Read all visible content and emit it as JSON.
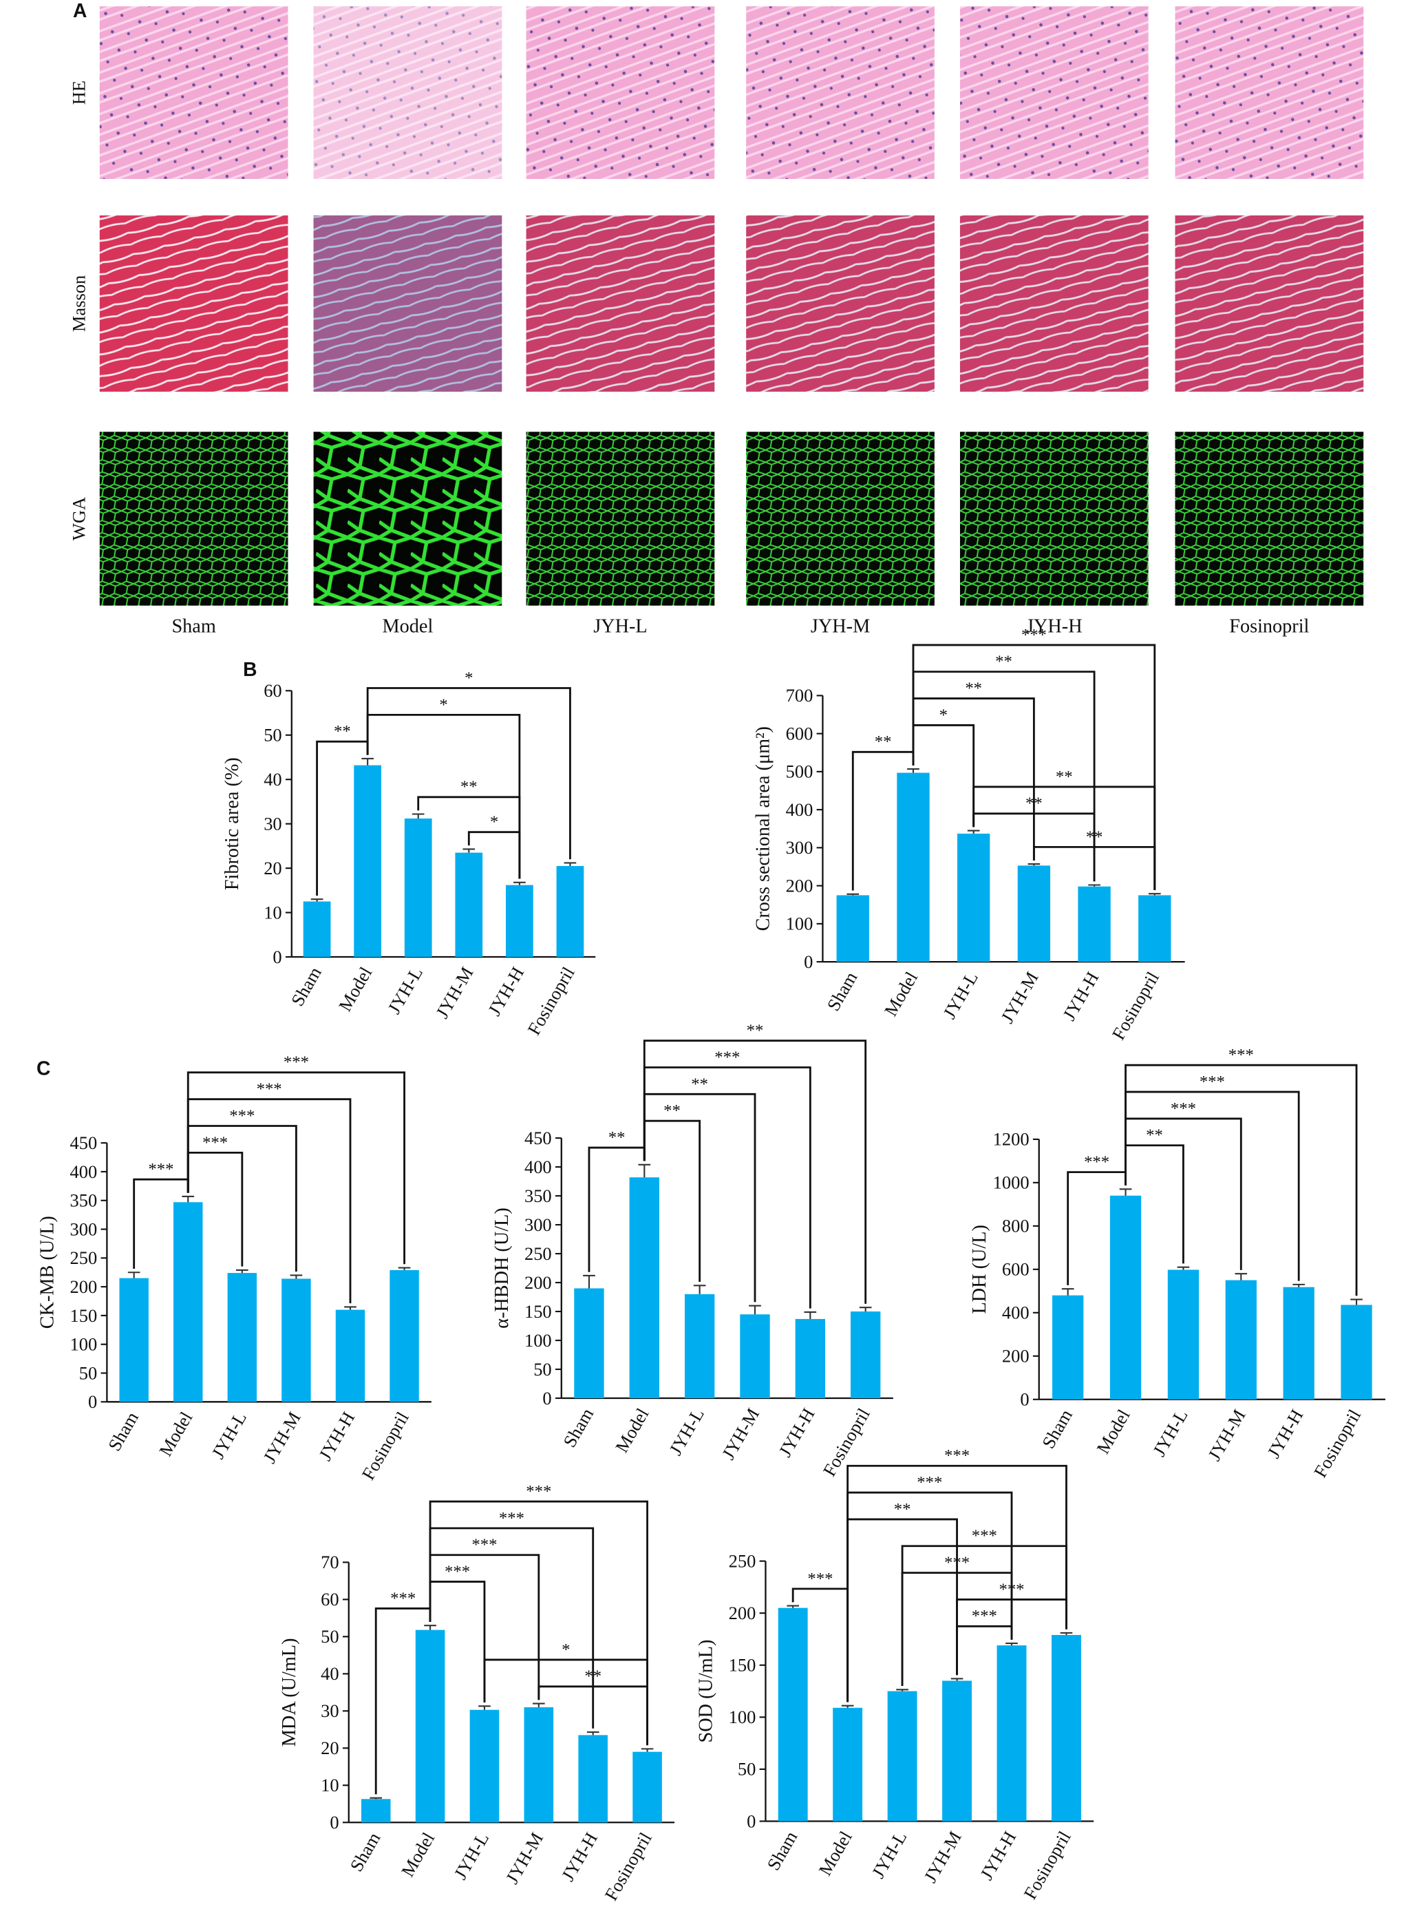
{
  "panel_labels": [
    "A",
    "B",
    "C"
  ],
  "histology": {
    "stains": [
      "HE",
      "Masson",
      "WGA"
    ],
    "groups": [
      "Sham",
      "Model",
      "JYH-L",
      "JYH-M",
      "JYH-H",
      "Fosinopril"
    ]
  },
  "chart_data": [
    {
      "type": "bar",
      "y_label": "Fibrotic area (%)",
      "color": "#00aeef",
      "categories": [
        "Sham",
        "Model",
        "JYH-L",
        "JYH-M",
        "JYH-H",
        "Fosinopril"
      ],
      "values": [
        12.5,
        43.2,
        31.2,
        23.5,
        16.2,
        20.5
      ],
      "errors": [
        0.5,
        1.5,
        1,
        0.8,
        0.6,
        0.7
      ],
      "ylim": [
        0,
        60
      ],
      "yticks": [
        0,
        10,
        20,
        30,
        40,
        50,
        60
      ],
      "annotations": [
        {
          "text": "**",
          "from": "Sham",
          "to": "Model"
        },
        {
          "text": "*",
          "from": "JYH-M",
          "to": "JYH-H"
        },
        {
          "text": "**",
          "from": "JYH-L",
          "to": "JYH-H"
        },
        {
          "text": "*",
          "from": "Model",
          "to": "JYH-H"
        },
        {
          "text": "*",
          "from": "Model",
          "to": "Fosinopril"
        }
      ]
    },
    {
      "type": "bar",
      "y_label": "Cross sectional area (μm²)",
      "color": "#00aeef",
      "categories": [
        "Sham",
        "Model",
        "JYH-L",
        "JYH-M",
        "JYH-H",
        "Fosinopril"
      ],
      "values": [
        175,
        497,
        337,
        253,
        198,
        175
      ],
      "errors": [
        3,
        10,
        8,
        4,
        4,
        4
      ],
      "ylim": [
        0,
        700
      ],
      "yticks": [
        0,
        100,
        200,
        300,
        400,
        500,
        600,
        700
      ],
      "annotations": [
        {
          "text": "**",
          "from": "Sham",
          "to": "Model"
        },
        {
          "text": "**",
          "from": "JYH-M",
          "to": "Fosinopril"
        },
        {
          "text": "**",
          "from": "JYH-L",
          "to": "JYH-H"
        },
        {
          "text": "**",
          "from": "JYH-L",
          "to": "Fosinopril"
        },
        {
          "text": "*",
          "from": "Model",
          "to": "JYH-L"
        },
        {
          "text": "**",
          "from": "Model",
          "to": "JYH-M"
        },
        {
          "text": "**",
          "from": "Model",
          "to": "JYH-H"
        },
        {
          "text": "***",
          "from": "Model",
          "to": "Fosinopril"
        }
      ]
    },
    {
      "type": "bar",
      "y_label": "CK-MB (U/L)",
      "color": "#00aeef",
      "categories": [
        "Sham",
        "Model",
        "JYH-L",
        "JYH-M",
        "JYH-H",
        "Fosinopril"
      ],
      "values": [
        215,
        347,
        224,
        214,
        160,
        229
      ],
      "errors": [
        10,
        10,
        5,
        6,
        5,
        4
      ],
      "ylim": [
        0,
        450
      ],
      "yticks": [
        0,
        50,
        100,
        150,
        200,
        250,
        300,
        350,
        400,
        450
      ],
      "annotations": [
        {
          "text": "***",
          "from": "Sham",
          "to": "Model"
        },
        {
          "text": "***",
          "from": "Model",
          "to": "JYH-L"
        },
        {
          "text": "***",
          "from": "Model",
          "to": "JYH-M"
        },
        {
          "text": "***",
          "from": "Model",
          "to": "JYH-H"
        },
        {
          "text": "***",
          "from": "Model",
          "to": "Fosinopril"
        }
      ]
    },
    {
      "type": "bar",
      "y_label": "α-HBDH (U/L)",
      "color": "#00aeef",
      "categories": [
        "Sham",
        "Model",
        "JYH-L",
        "JYH-M",
        "JYH-H",
        "Fosinopril"
      ],
      "values": [
        190,
        382,
        180,
        145,
        137,
        150
      ],
      "errors": [
        22,
        22,
        15,
        15,
        12,
        7
      ],
      "ylim": [
        0,
        450
      ],
      "yticks": [
        0,
        50,
        100,
        150,
        200,
        250,
        300,
        350,
        400,
        450
      ],
      "annotations": [
        {
          "text": "**",
          "from": "Sham",
          "to": "Model"
        },
        {
          "text": "**",
          "from": "Model",
          "to": "JYH-L"
        },
        {
          "text": "**",
          "from": "Model",
          "to": "JYH-M"
        },
        {
          "text": "***",
          "from": "Model",
          "to": "JYH-H"
        },
        {
          "text": "**",
          "from": "Model",
          "to": "Fosinopril"
        }
      ]
    },
    {
      "type": "bar",
      "y_label": "LDH (U/L)",
      "color": "#00aeef",
      "categories": [
        "Sham",
        "Model",
        "JYH-L",
        "JYH-M",
        "JYH-H",
        "Fosinopril"
      ],
      "values": [
        480,
        940,
        598,
        550,
        518,
        436
      ],
      "errors": [
        30,
        30,
        12,
        30,
        12,
        25
      ],
      "ylim": [
        0,
        1200
      ],
      "yticks": [
        0,
        200,
        400,
        600,
        800,
        1000,
        1200
      ],
      "annotations": [
        {
          "text": "***",
          "from": "Sham",
          "to": "Model"
        },
        {
          "text": "**",
          "from": "Model",
          "to": "JYH-L"
        },
        {
          "text": "***",
          "from": "Model",
          "to": "JYH-M"
        },
        {
          "text": "***",
          "from": "Model",
          "to": "JYH-H"
        },
        {
          "text": "***",
          "from": "Model",
          "to": "Fosinopril"
        }
      ]
    },
    {
      "type": "bar",
      "y_label": "MDA (U/mL)",
      "color": "#00aeef",
      "categories": [
        "Sham",
        "Model",
        "JYH-L",
        "JYH-M",
        "JYH-H",
        "Fosinopril"
      ],
      "values": [
        6.3,
        51.8,
        30.3,
        31,
        23.5,
        19
      ],
      "errors": [
        0.3,
        1.2,
        1,
        1,
        0.8,
        0.8
      ],
      "ylim": [
        0,
        70
      ],
      "yticks": [
        0,
        10,
        20,
        30,
        40,
        50,
        60,
        70
      ],
      "annotations": [
        {
          "text": "***",
          "from": "Sham",
          "to": "Model"
        },
        {
          "text": "**",
          "from": "JYH-M",
          "to": "Fosinopril"
        },
        {
          "text": "*",
          "from": "JYH-L",
          "to": "Fosinopril"
        },
        {
          "text": "***",
          "from": "Model",
          "to": "JYH-L"
        },
        {
          "text": "***",
          "from": "Model",
          "to": "JYH-M"
        },
        {
          "text": "***",
          "from": "Model",
          "to": "JYH-H"
        },
        {
          "text": "***",
          "from": "Model",
          "to": "Fosinopril"
        }
      ]
    },
    {
      "type": "bar",
      "y_label": "SOD (U/mL)",
      "color": "#00aeef",
      "categories": [
        "Sham",
        "Model",
        "JYH-L",
        "JYH-M",
        "JYH-H",
        "Fosinopril"
      ],
      "values": [
        205,
        109,
        125,
        135,
        169,
        179
      ],
      "errors": [
        2,
        2,
        1.5,
        2,
        2,
        2
      ],
      "ylim": [
        0,
        250
      ],
      "yticks": [
        0,
        50,
        100,
        150,
        200,
        250
      ],
      "annotations": [
        {
          "text": "***",
          "from": "Sham",
          "to": "Model"
        },
        {
          "text": "***",
          "from": "JYH-M",
          "to": "JYH-H"
        },
        {
          "text": "***",
          "from": "JYH-M",
          "to": "Fosinopril"
        },
        {
          "text": "***",
          "from": "JYH-L",
          "to": "JYH-H"
        },
        {
          "text": "***",
          "from": "JYH-L",
          "to": "Fosinopril"
        },
        {
          "text": "**",
          "from": "Model",
          "to": "JYH-M"
        },
        {
          "text": "***",
          "from": "Model",
          "to": "JYH-H"
        },
        {
          "text": "***",
          "from": "Model",
          "to": "Fosinopril"
        }
      ]
    }
  ]
}
